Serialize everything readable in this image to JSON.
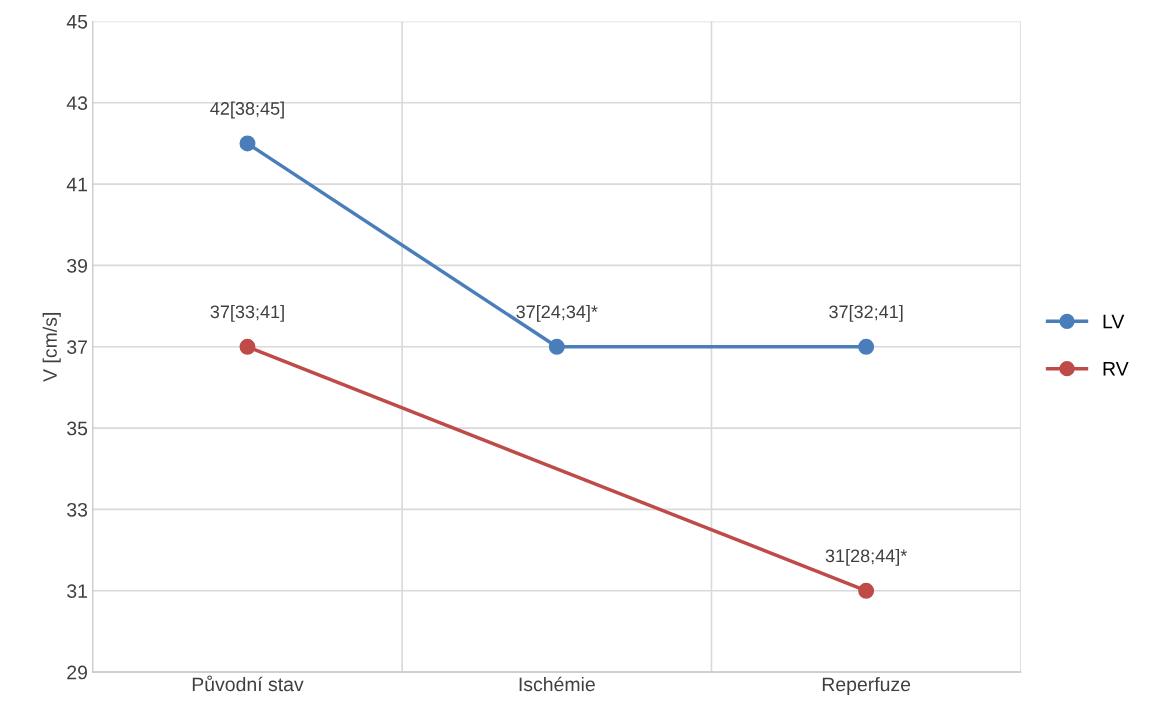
{
  "chart_data": {
    "type": "line",
    "ylabel": "V [cm/s]",
    "categories": [
      "Původní stav",
      "Ischémie",
      "Reperfuze"
    ],
    "series": [
      {
        "name": "LV",
        "color": "#4a7ebb",
        "values": [
          42,
          37,
          37
        ],
        "value_labels": [
          "42[38;45]",
          "37[24;34]*",
          "37[32;41]"
        ]
      },
      {
        "name": "RV",
        "color": "#be4b48",
        "values": [
          37,
          null,
          31
        ],
        "value_labels": [
          "37[33;41]",
          null,
          "31[28;44]*"
        ]
      }
    ],
    "ylim": [
      29,
      45
    ],
    "yticks": [
      29,
      31,
      33,
      35,
      37,
      39,
      41,
      43,
      45
    ],
    "grid": true,
    "legend": "right",
    "marker": "circle",
    "line_style": "solid"
  }
}
